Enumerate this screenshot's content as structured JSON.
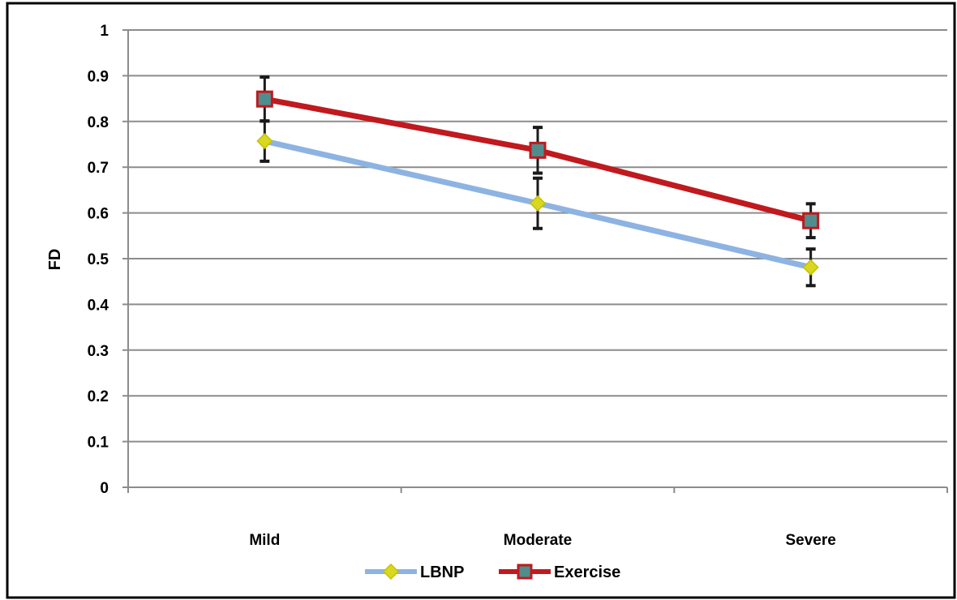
{
  "chart_data": {
    "type": "line",
    "title": "",
    "xlabel": "",
    "ylabel": "FD",
    "categories": [
      "Mild",
      "Moderate",
      "Severe"
    ],
    "ylim": [
      0,
      1
    ],
    "yticks": [
      "0",
      "0.1",
      "0.2",
      "0.3",
      "0.4",
      "0.5",
      "0.6",
      "0.7",
      "0.8",
      "0.9",
      "1"
    ],
    "grid": true,
    "legend_position": "bottom",
    "series": [
      {
        "name": "LBNP",
        "values": [
          0.757,
          0.621,
          0.481
        ],
        "error": [
          0.044,
          0.055,
          0.04
        ],
        "line_color": "#8DB3E2",
        "marker": "diamond",
        "marker_fill": "#D8D820",
        "marker_stroke": "#C8C000"
      },
      {
        "name": "Exercise",
        "values": [
          0.849,
          0.737,
          0.583
        ],
        "error": [
          0.048,
          0.05,
          0.037
        ],
        "line_color": "#C0191E",
        "marker": "square",
        "marker_fill": "#4F8E8E",
        "marker_stroke": "#C0191E"
      }
    ]
  }
}
